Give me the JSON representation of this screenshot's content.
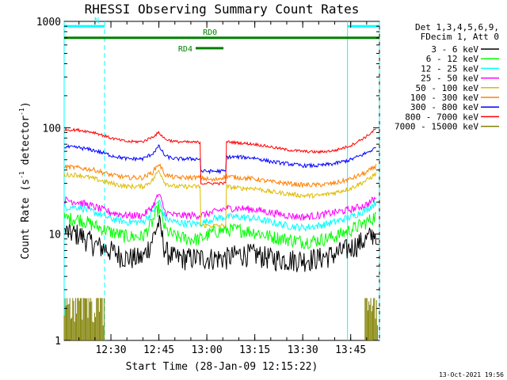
{
  "chart_data": {
    "type": "line",
    "title": "RHESSI Observing Summary Count Rates",
    "xlabel": "Start Time (28-Jan-09 12:15:22)",
    "ylabel_parts": [
      "Count Rate (s",
      "-1",
      " detector",
      "-1",
      ")"
    ],
    "x_start_minutes": 15.37,
    "x_range_minutes": [
      15.37,
      114.0
    ],
    "x_ticks": [
      {
        "minutes": 30,
        "label": "12:30"
      },
      {
        "minutes": 45,
        "label": "12:45"
      },
      {
        "minutes": 60,
        "label": "13:00"
      },
      {
        "minutes": 75,
        "label": "13:15"
      },
      {
        "minutes": 90,
        "label": "13:30"
      },
      {
        "minutes": 105,
        "label": "13:45"
      }
    ],
    "y_scale": "log",
    "ylim": [
      1,
      1000
    ],
    "y_ticks": [
      {
        "value": 1,
        "label": "1"
      },
      {
        "value": 10,
        "label": "10"
      },
      {
        "value": 100,
        "label": "100"
      },
      {
        "value": 1000,
        "label": "1000"
      }
    ],
    "legend_header": [
      "Det 1,3,4,5,6,9,",
      "FDecim 1, Att 0"
    ],
    "series": [
      {
        "name": "3 - 6 keV",
        "color": "#000000",
        "noise": 0.25,
        "points": [
          [
            15.4,
            10.5
          ],
          [
            20,
            10
          ],
          [
            25,
            8
          ],
          [
            30,
            7
          ],
          [
            35,
            6
          ],
          [
            40,
            6
          ],
          [
            43,
            9
          ],
          [
            45,
            13
          ],
          [
            47,
            7
          ],
          [
            50,
            6
          ],
          [
            55,
            6
          ],
          [
            58,
            6
          ],
          [
            62,
            6
          ],
          [
            66,
            6
          ],
          [
            70,
            6.5
          ],
          [
            75,
            6.5
          ],
          [
            80,
            6
          ],
          [
            85,
            5.8
          ],
          [
            90,
            5.8
          ],
          [
            95,
            6
          ],
          [
            100,
            6.5
          ],
          [
            105,
            7.5
          ],
          [
            110,
            9
          ],
          [
            113,
            10.5
          ]
        ]
      },
      {
        "name": "6 - 12 keV",
        "color": "#00ff00",
        "noise": 0.15,
        "points": [
          [
            15.4,
            14
          ],
          [
            20,
            14
          ],
          [
            25,
            12
          ],
          [
            30,
            10.5
          ],
          [
            35,
            9.5
          ],
          [
            40,
            9.5
          ],
          [
            43,
            13
          ],
          [
            45,
            18
          ],
          [
            47,
            11
          ],
          [
            50,
            9.5
          ],
          [
            55,
            9
          ],
          [
            58,
            9
          ],
          [
            62,
            10.5
          ],
          [
            66,
            11
          ],
          [
            70,
            11
          ],
          [
            75,
            10.5
          ],
          [
            80,
            9.5
          ],
          [
            85,
            9
          ],
          [
            90,
            8.5
          ],
          [
            95,
            8.8
          ],
          [
            100,
            9.5
          ],
          [
            105,
            11
          ],
          [
            110,
            13
          ],
          [
            113,
            15
          ]
        ]
      },
      {
        "name": "12 - 25 keV",
        "color": "#00ffff",
        "noise": 0.08,
        "points": [
          [
            15.4,
            18
          ],
          [
            20,
            18
          ],
          [
            25,
            16
          ],
          [
            30,
            14
          ],
          [
            35,
            13
          ],
          [
            40,
            13
          ],
          [
            43,
            16
          ],
          [
            45,
            21
          ],
          [
            47,
            14
          ],
          [
            50,
            13
          ],
          [
            55,
            12.5
          ],
          [
            58,
            12.5
          ],
          [
            62,
            14
          ],
          [
            66,
            14.5
          ],
          [
            70,
            14.5
          ],
          [
            75,
            14
          ],
          [
            80,
            13
          ],
          [
            85,
            12
          ],
          [
            90,
            11.5
          ],
          [
            95,
            12
          ],
          [
            100,
            13
          ],
          [
            105,
            14.5
          ],
          [
            110,
            17
          ],
          [
            113,
            20
          ]
        ]
      },
      {
        "name": "25 - 50 keV",
        "color": "#ff00ff",
        "noise": 0.08,
        "points": [
          [
            15.4,
            21
          ],
          [
            20,
            20
          ],
          [
            25,
            18
          ],
          [
            30,
            16
          ],
          [
            35,
            15
          ],
          [
            40,
            15
          ],
          [
            43,
            18
          ],
          [
            45,
            24
          ],
          [
            47,
            16
          ],
          [
            50,
            15
          ],
          [
            55,
            15
          ],
          [
            58,
            15
          ],
          [
            62,
            16
          ],
          [
            66,
            17.5
          ],
          [
            70,
            17.5
          ],
          [
            75,
            17
          ],
          [
            80,
            16
          ],
          [
            85,
            15
          ],
          [
            90,
            14.5
          ],
          [
            95,
            15
          ],
          [
            100,
            16
          ],
          [
            105,
            17
          ],
          [
            110,
            19
          ],
          [
            113,
            22
          ]
        ]
      },
      {
        "name": "50 - 100 keV",
        "color": "#ddbb00",
        "noise": 0.05,
        "points": [
          [
            15.4,
            36
          ],
          [
            20,
            36
          ],
          [
            25,
            33
          ],
          [
            30,
            30
          ],
          [
            35,
            28
          ],
          [
            40,
            28
          ],
          [
            43,
            32
          ],
          [
            45,
            40
          ],
          [
            47,
            30
          ],
          [
            50,
            28
          ],
          [
            55,
            28
          ],
          [
            58,
            28
          ],
          [
            58.1,
            12
          ],
          [
            62,
            12
          ],
          [
            65.9,
            12
          ],
          [
            66,
            28
          ],
          [
            70,
            27
          ],
          [
            75,
            27
          ],
          [
            80,
            25
          ],
          [
            85,
            24
          ],
          [
            90,
            23
          ],
          [
            95,
            23
          ],
          [
            100,
            24.5
          ],
          [
            105,
            27
          ],
          [
            110,
            32
          ],
          [
            113,
            37
          ]
        ]
      },
      {
        "name": "100 - 300 keV",
        "color": "#ff8000",
        "noise": 0.05,
        "points": [
          [
            15.4,
            43
          ],
          [
            20,
            42
          ],
          [
            25,
            40
          ],
          [
            30,
            36
          ],
          [
            35,
            34
          ],
          [
            40,
            34
          ],
          [
            43,
            38
          ],
          [
            45,
            46
          ],
          [
            47,
            36
          ],
          [
            50,
            34
          ],
          [
            55,
            34
          ],
          [
            58,
            34
          ],
          [
            62,
            32
          ],
          [
            66,
            35
          ],
          [
            70,
            34
          ],
          [
            75,
            33
          ],
          [
            80,
            31
          ],
          [
            85,
            30
          ],
          [
            90,
            29
          ],
          [
            95,
            29
          ],
          [
            100,
            30
          ],
          [
            105,
            33
          ],
          [
            110,
            38
          ],
          [
            113,
            44
          ]
        ]
      },
      {
        "name": "300 - 800 keV",
        "color": "#0000ff",
        "noise": 0.04,
        "points": [
          [
            15.4,
            66
          ],
          [
            20,
            65
          ],
          [
            25,
            61
          ],
          [
            30,
            55
          ],
          [
            35,
            51
          ],
          [
            40,
            51
          ],
          [
            43,
            57
          ],
          [
            45,
            67
          ],
          [
            47,
            54
          ],
          [
            50,
            51
          ],
          [
            55,
            51
          ],
          [
            58,
            51
          ],
          [
            58.1,
            39
          ],
          [
            62,
            39
          ],
          [
            65.9,
            39
          ],
          [
            66,
            53
          ],
          [
            70,
            53
          ],
          [
            75,
            52
          ],
          [
            80,
            48
          ],
          [
            85,
            46
          ],
          [
            90,
            44
          ],
          [
            95,
            44
          ],
          [
            100,
            46
          ],
          [
            105,
            50
          ],
          [
            110,
            58
          ],
          [
            113,
            65
          ]
        ]
      },
      {
        "name": "800 - 7000 keV",
        "color": "#ff0000",
        "noise": 0.03,
        "points": [
          [
            15.4,
            96
          ],
          [
            20,
            95
          ],
          [
            25,
            90
          ],
          [
            30,
            80
          ],
          [
            35,
            74
          ],
          [
            40,
            74
          ],
          [
            43,
            82
          ],
          [
            45,
            90
          ],
          [
            47,
            78
          ],
          [
            50,
            74
          ],
          [
            55,
            73
          ],
          [
            58,
            73
          ],
          [
            58.1,
            30
          ],
          [
            62,
            30
          ],
          [
            65.9,
            30
          ],
          [
            66,
            74
          ],
          [
            70,
            72
          ],
          [
            75,
            70
          ],
          [
            80,
            66
          ],
          [
            85,
            62
          ],
          [
            90,
            60
          ],
          [
            95,
            59
          ],
          [
            100,
            61
          ],
          [
            105,
            68
          ],
          [
            110,
            83
          ],
          [
            113,
            98
          ]
        ]
      },
      {
        "name": "7000 - 15000 keV",
        "color": "#808000",
        "noise": 0.0,
        "points": []
      }
    ],
    "annotations": [
      {
        "label": "N",
        "color": "#00ffff",
        "y_value": 900,
        "x_from": 15.37,
        "x_to": 28.0
      },
      {
        "label": "",
        "color": "#00ffff",
        "y_value": 900,
        "x_from": 104.0,
        "x_to": 114.0
      },
      {
        "label": "RD0",
        "color": "#008000",
        "y_value": 700,
        "x_from": 15.37,
        "x_to": 114.0
      },
      {
        "label": "RD4",
        "color": "#008000",
        "y_value": 560,
        "x_from": 56.5,
        "x_to": 65.2
      }
    ],
    "vertical_markers": [
      {
        "minutes": 28.0,
        "style": "dashed",
        "color": "#00ffff"
      },
      {
        "minutes": 104.0,
        "style": "solid",
        "color": "#00ffff"
      },
      {
        "minutes": 114.0,
        "style": "dashed",
        "color": "#00ffff"
      },
      {
        "minutes": 15.37,
        "style": "solid",
        "color": "#00ffff"
      }
    ],
    "low_bars": {
      "color": "#808000",
      "y_value": 2.5,
      "ranges": [
        [
          15.37,
          28.0
        ],
        [
          109.5,
          113.5
        ]
      ]
    },
    "grid": false,
    "legend_position": "right"
  },
  "footer_date": "13-Oct-2021 19:56"
}
